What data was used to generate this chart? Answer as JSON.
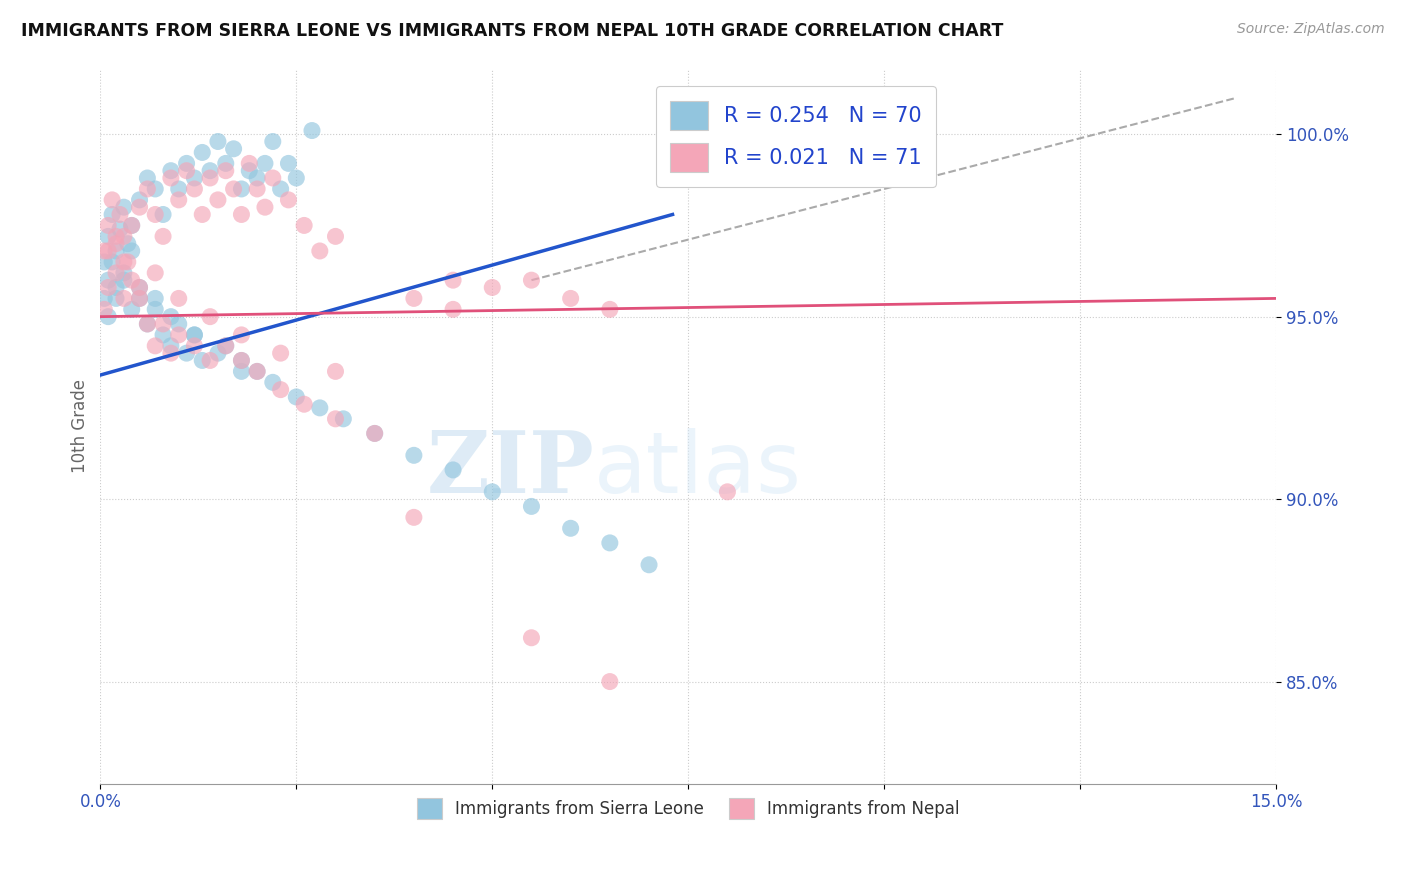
{
  "title": "IMMIGRANTS FROM SIERRA LEONE VS IMMIGRANTS FROM NEPAL 10TH GRADE CORRELATION CHART",
  "source": "Source: ZipAtlas.com",
  "ylabel": "10th Grade",
  "ytick_labels": [
    "85.0%",
    "90.0%",
    "95.0%",
    "100.0%"
  ],
  "ytick_values": [
    0.85,
    0.9,
    0.95,
    1.0
  ],
  "xlim": [
    0.0,
    0.15
  ],
  "ylim": [
    0.822,
    1.018
  ],
  "legend_R_blue": "0.254",
  "legend_N_blue": "70",
  "legend_R_pink": "0.021",
  "legend_N_pink": "71",
  "color_blue": "#92c5de",
  "color_pink": "#f4a6b8",
  "color_blue_line": "#2255cc",
  "color_pink_line": "#e0507a",
  "color_dashed": "#aaaaaa",
  "watermark_zip": "ZIP",
  "watermark_atlas": "atlas",
  "sierra_leone_x": [
    0.0005,
    0.001,
    0.0015,
    0.002,
    0.0025,
    0.003,
    0.0035,
    0.004,
    0.005,
    0.006,
    0.007,
    0.008,
    0.009,
    0.01,
    0.011,
    0.012,
    0.013,
    0.014,
    0.015,
    0.016,
    0.017,
    0.018,
    0.019,
    0.02,
    0.021,
    0.022,
    0.023,
    0.024,
    0.025,
    0.027,
    0.0005,
    0.001,
    0.0015,
    0.002,
    0.003,
    0.004,
    0.005,
    0.006,
    0.007,
    0.008,
    0.009,
    0.01,
    0.011,
    0.012,
    0.013,
    0.016,
    0.018,
    0.02,
    0.022,
    0.025,
    0.028,
    0.031,
    0.035,
    0.04,
    0.045,
    0.05,
    0.055,
    0.06,
    0.065,
    0.07,
    0.001,
    0.002,
    0.003,
    0.004,
    0.005,
    0.007,
    0.009,
    0.012,
    0.015,
    0.018
  ],
  "sierra_leone_y": [
    0.965,
    0.972,
    0.978,
    0.968,
    0.974,
    0.98,
    0.97,
    0.975,
    0.982,
    0.988,
    0.985,
    0.978,
    0.99,
    0.985,
    0.992,
    0.988,
    0.995,
    0.99,
    0.998,
    0.992,
    0.996,
    0.985,
    0.99,
    0.988,
    0.992,
    0.998,
    0.985,
    0.992,
    0.988,
    1.001,
    0.955,
    0.96,
    0.965,
    0.958,
    0.962,
    0.968,
    0.955,
    0.948,
    0.952,
    0.945,
    0.942,
    0.948,
    0.94,
    0.945,
    0.938,
    0.942,
    0.938,
    0.935,
    0.932,
    0.928,
    0.925,
    0.922,
    0.918,
    0.912,
    0.908,
    0.902,
    0.898,
    0.892,
    0.888,
    0.882,
    0.95,
    0.955,
    0.96,
    0.952,
    0.958,
    0.955,
    0.95,
    0.945,
    0.94,
    0.935
  ],
  "nepal_x": [
    0.0005,
    0.001,
    0.0015,
    0.002,
    0.0025,
    0.003,
    0.0035,
    0.004,
    0.005,
    0.006,
    0.007,
    0.008,
    0.009,
    0.01,
    0.011,
    0.012,
    0.013,
    0.014,
    0.015,
    0.016,
    0.017,
    0.018,
    0.019,
    0.02,
    0.021,
    0.022,
    0.024,
    0.026,
    0.028,
    0.03,
    0.0005,
    0.001,
    0.002,
    0.003,
    0.004,
    0.005,
    0.006,
    0.007,
    0.008,
    0.009,
    0.01,
    0.012,
    0.014,
    0.016,
    0.018,
    0.02,
    0.023,
    0.026,
    0.03,
    0.035,
    0.04,
    0.045,
    0.05,
    0.055,
    0.06,
    0.065,
    0.04,
    0.055,
    0.065,
    0.08,
    0.001,
    0.002,
    0.003,
    0.005,
    0.007,
    0.01,
    0.014,
    0.018,
    0.023,
    0.03,
    0.045
  ],
  "nepal_y": [
    0.968,
    0.975,
    0.982,
    0.97,
    0.978,
    0.972,
    0.965,
    0.975,
    0.98,
    0.985,
    0.978,
    0.972,
    0.988,
    0.982,
    0.99,
    0.985,
    0.978,
    0.988,
    0.982,
    0.99,
    0.985,
    0.978,
    0.992,
    0.985,
    0.98,
    0.988,
    0.982,
    0.975,
    0.968,
    0.972,
    0.952,
    0.958,
    0.962,
    0.955,
    0.96,
    0.955,
    0.948,
    0.942,
    0.948,
    0.94,
    0.945,
    0.942,
    0.938,
    0.942,
    0.938,
    0.935,
    0.93,
    0.926,
    0.922,
    0.918,
    0.955,
    0.952,
    0.958,
    0.96,
    0.955,
    0.952,
    0.895,
    0.862,
    0.85,
    0.902,
    0.968,
    0.972,
    0.965,
    0.958,
    0.962,
    0.955,
    0.95,
    0.945,
    0.94,
    0.935,
    0.96
  ],
  "blue_line_x": [
    0.0,
    0.073
  ],
  "blue_line_y": [
    0.934,
    0.978
  ],
  "pink_line_x": [
    0.0,
    0.15
  ],
  "pink_line_y": [
    0.95,
    0.955
  ],
  "dashed_line_x": [
    0.055,
    0.145
  ],
  "dashed_line_y": [
    0.96,
    1.01
  ]
}
